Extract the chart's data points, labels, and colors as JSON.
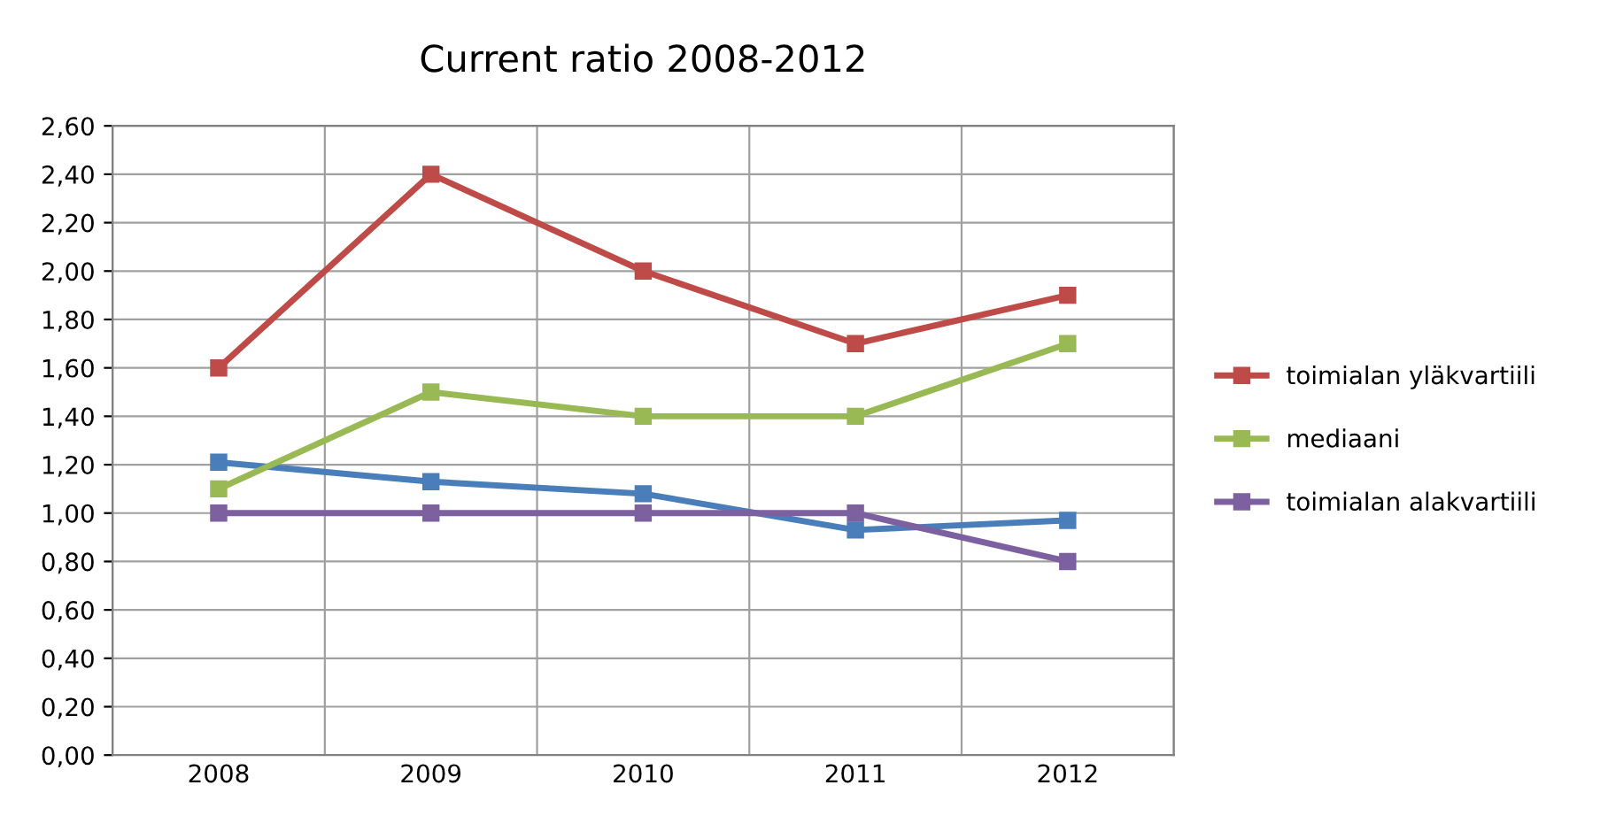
{
  "chart_data": {
    "type": "line",
    "title": "Current ratio 2008-2012",
    "categories": [
      "2008",
      "2009",
      "2010",
      "2011",
      "2012"
    ],
    "series": [
      {
        "color": "#4a7ebb",
        "values": [
          1.21,
          1.13,
          1.08,
          0.93,
          0.97
        ]
      },
      {
        "name": "toimialan yläkvartiili",
        "color": "#be4b48",
        "values": [
          1.6,
          2.4,
          2.0,
          1.7,
          1.9
        ]
      },
      {
        "name": "mediaani",
        "color": "#98b954",
        "values": [
          1.1,
          1.5,
          1.4,
          1.4,
          1.7
        ]
      },
      {
        "name": "toimialan alakvartiili",
        "color": "#7d60a0",
        "values": [
          1.0,
          1.0,
          1.0,
          1.0,
          0.8
        ]
      }
    ],
    "ylim": [
      0,
      2.6
    ],
    "yticks": [
      {
        "value": 0,
        "label": "0,00"
      },
      {
        "value": 0.2,
        "label": "0,20"
      },
      {
        "value": 0.4,
        "label": "0,40"
      },
      {
        "value": 0.6,
        "label": "0,60"
      },
      {
        "value": 0.8,
        "label": "0,80"
      },
      {
        "value": 1.0,
        "label": "1,00"
      },
      {
        "value": 1.2,
        "label": "1,20"
      },
      {
        "value": 1.4,
        "label": "1,40"
      },
      {
        "value": 1.6,
        "label": "1,60"
      },
      {
        "value": 1.8,
        "label": "1,80"
      },
      {
        "value": 2.0,
        "label": "2,00"
      },
      {
        "value": 2.2,
        "label": "2,20"
      },
      {
        "value": 2.4,
        "label": "2,40"
      },
      {
        "value": 2.6,
        "label": "2,60"
      }
    ],
    "grid": true,
    "legend": "right",
    "marker": "square",
    "line_style": "solid"
  }
}
